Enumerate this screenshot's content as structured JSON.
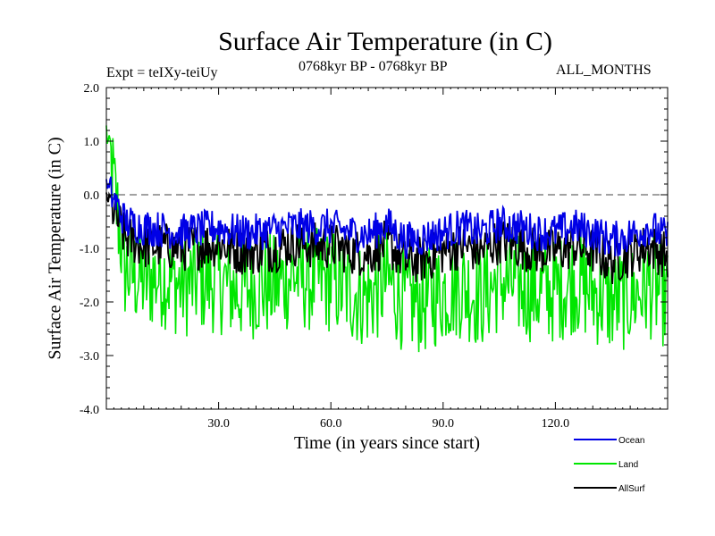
{
  "header": {
    "title": "Surface Air Temperature (in C)",
    "expt": "Expt = teIXy-teiUy",
    "period": "0768kyr BP - 0768kyr BP",
    "months": "ALL_MONTHS"
  },
  "chart_data": {
    "type": "line",
    "title": "Surface Air Temperature (in C)",
    "xlabel": "Time (in years since start)",
    "ylabel": "Surface Air Temperature (in C)",
    "xlim": [
      0,
      150
    ],
    "ylim": [
      -4.0,
      2.0
    ],
    "xticks": [
      30,
      60,
      90,
      120
    ],
    "xtick_labels": [
      "30.0",
      "60.0",
      "90.0",
      "120.0"
    ],
    "yticks": [
      -4,
      -3,
      -2,
      -1,
      0,
      1,
      2
    ],
    "ytick_labels": [
      "-4.0",
      "-3.0",
      "-2.0",
      "-1.0",
      "0.0",
      "1.0",
      "2.0"
    ],
    "reference_line": 0.0,
    "legend_position": "bottom-right",
    "series": [
      {
        "name": "Ocean",
        "color": "#0000e6",
        "x": [
          0,
          5,
          10,
          15,
          20,
          25,
          30,
          35,
          40,
          45,
          50,
          55,
          60,
          65,
          70,
          75,
          80,
          85,
          90,
          95,
          100,
          105,
          110,
          115,
          120,
          125,
          130,
          135,
          140,
          145,
          150
        ],
        "values": [
          0.2,
          -0.5,
          -0.6,
          -0.65,
          -0.7,
          -0.65,
          -0.6,
          -0.7,
          -0.7,
          -0.65,
          -0.6,
          -0.6,
          -0.6,
          -0.7,
          -0.75,
          -0.55,
          -0.85,
          -0.8,
          -0.7,
          -0.6,
          -0.7,
          -0.55,
          -0.6,
          -0.7,
          -0.7,
          -0.6,
          -0.7,
          -0.85,
          -0.75,
          -0.6,
          -0.8
        ]
      },
      {
        "name": "Land",
        "color": "#00e600",
        "x": [
          0,
          5,
          10,
          15,
          20,
          25,
          30,
          35,
          40,
          45,
          50,
          55,
          60,
          65,
          70,
          75,
          80,
          85,
          90,
          95,
          100,
          105,
          110,
          115,
          120,
          125,
          130,
          135,
          140,
          145,
          150
        ],
        "values": [
          1.2,
          -1.4,
          -1.6,
          -1.5,
          -1.7,
          -1.6,
          -1.6,
          -1.8,
          -1.7,
          -1.7,
          -1.5,
          -1.6,
          -1.6,
          -1.8,
          -1.9,
          -1.6,
          -2.0,
          -2.0,
          -1.8,
          -1.7,
          -1.9,
          -1.6,
          -1.7,
          -1.8,
          -1.8,
          -1.6,
          -1.8,
          -2.0,
          -1.9,
          -1.7,
          -1.9
        ]
      },
      {
        "name": "AllSurf",
        "color": "#000000",
        "x": [
          0,
          5,
          10,
          15,
          20,
          25,
          30,
          35,
          40,
          45,
          50,
          55,
          60,
          65,
          70,
          75,
          80,
          85,
          90,
          95,
          100,
          105,
          110,
          115,
          120,
          125,
          130,
          135,
          140,
          145,
          150
        ],
        "values": [
          0.0,
          -0.8,
          -0.95,
          -0.95,
          -1.0,
          -0.95,
          -0.9,
          -1.05,
          -1.05,
          -1.0,
          -0.9,
          -0.95,
          -0.95,
          -1.05,
          -1.1,
          -0.9,
          -1.25,
          -1.2,
          -1.05,
          -0.95,
          -1.05,
          -0.85,
          -0.95,
          -1.05,
          -1.05,
          -0.95,
          -1.05,
          -1.25,
          -1.1,
          -0.95,
          -1.15
        ]
      }
    ]
  }
}
